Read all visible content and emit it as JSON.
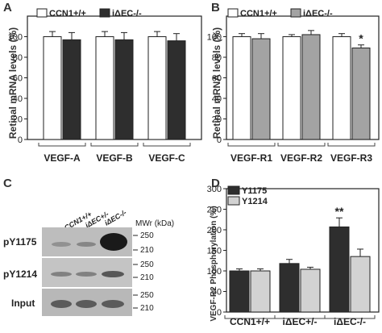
{
  "panels": {
    "A": {
      "label": "A"
    },
    "B": {
      "label": "B"
    },
    "C": {
      "label": "C"
    },
    "D": {
      "label": "D"
    }
  },
  "blot": {
    "lanes": [
      "CCN1+/+",
      "iΔEC+/-",
      "iΔEC-/-"
    ],
    "mwr_label": "MWr (kDa)",
    "rows": [
      {
        "label": "pY1175",
        "markers": [
          "250",
          "210"
        ]
      },
      {
        "label": "pY1214",
        "markers": [
          "250",
          "210"
        ]
      },
      {
        "label": "Input",
        "markers": [
          "250",
          "210"
        ]
      }
    ]
  },
  "colors": {
    "white_bar": "#ffffff",
    "black_bar": "#2e2e2e",
    "gray_bar": "#a3a3a3",
    "light_bar": "#d2d2d2",
    "blot_bg": "#bdbdbd"
  },
  "chart_data": [
    {
      "panel": "A",
      "type": "bar",
      "categories": [
        "VEGF-A",
        "VEGF-B",
        "VEGF-C"
      ],
      "series": [
        {
          "name": "CCN1+/+",
          "values": [
            100,
            100,
            100
          ],
          "errors": [
            5,
            5,
            5
          ]
        },
        {
          "name": "iΔEC-/-",
          "values": [
            97,
            97,
            96
          ],
          "errors": [
            7,
            7,
            7
          ]
        }
      ],
      "ylabel": "Retinal mRNA levels (%)",
      "ylim": [
        0,
        120
      ],
      "yticks": [
        0,
        20,
        40,
        60,
        80,
        100
      ],
      "legend": "top-left"
    },
    {
      "panel": "B",
      "type": "bar",
      "categories": [
        "VEGF-R1",
        "VEGF-R2",
        "VEGF-R3"
      ],
      "series": [
        {
          "name": "CCN1+/+",
          "values": [
            100,
            100,
            100
          ],
          "errors": [
            3,
            2,
            3
          ]
        },
        {
          "name": "iΔEC-/-",
          "values": [
            98,
            102,
            89
          ],
          "errors": [
            5,
            4,
            3
          ]
        }
      ],
      "ylabel": "Retinal mRNA levels (%)",
      "ylim": [
        0,
        120
      ],
      "yticks": [
        0,
        20,
        40,
        60,
        80,
        100
      ],
      "annotations": [
        {
          "category": "VEGF-R3",
          "series": "iΔEC-/-",
          "text": "*"
        }
      ],
      "legend": "top-left"
    },
    {
      "panel": "D",
      "type": "bar",
      "categories": [
        "CCN1+/+",
        "iΔEC+/-",
        "iΔEC-/-"
      ],
      "series": [
        {
          "name": "Y1175",
          "values": [
            100,
            118,
            207
          ],
          "errors": [
            5,
            10,
            22
          ]
        },
        {
          "name": "Y1214",
          "values": [
            100,
            104,
            135
          ],
          "errors": [
            5,
            5,
            18
          ]
        }
      ],
      "ylabel": "VEGF-R2 Phosphorylation (%)",
      "ylim": [
        0,
        300
      ],
      "yticks": [
        0,
        50,
        100,
        150,
        200,
        250,
        300
      ],
      "annotations": [
        {
          "category": "iΔEC-/-",
          "series": "Y1175",
          "text": "**"
        }
      ],
      "legend": "top-left"
    }
  ]
}
